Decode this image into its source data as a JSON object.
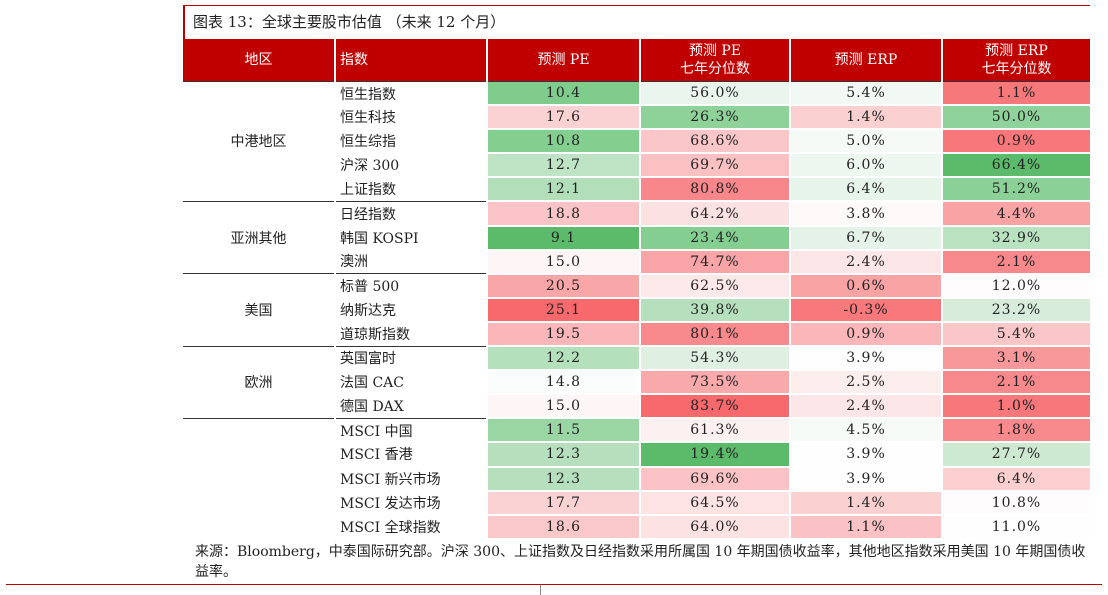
{
  "title": "图表 13：全球主要股市估值 （未来 12 个月）",
  "headers": {
    "region": "地区",
    "index": "指数",
    "pe": "预测 PE",
    "pe_pct": [
      "预测 PE",
      "七年分位数"
    ],
    "erp": "预测 ERP",
    "erp_pct": [
      "预测 ERP",
      "七年分位数"
    ]
  },
  "groups": [
    {
      "region": "中港地区",
      "rows": [
        {
          "index": "恒生指数",
          "pe": "10.4",
          "pe_pct": "56.0%",
          "erp": "5.4%",
          "erp_pct": "1.1%",
          "colors": [
            "#7fcc8c",
            "#e9f5ec",
            "#f2f8f3",
            "#f7787b"
          ]
        },
        {
          "index": "恒生科技",
          "pe": "17.6",
          "pe_pct": "26.3%",
          "erp": "1.4%",
          "erp_pct": "50.0%",
          "colors": [
            "#fbd2d3",
            "#8ed29a",
            "#fbd0d1",
            "#8fd29b"
          ]
        },
        {
          "index": "恒生综指",
          "pe": "10.8",
          "pe_pct": "68.6%",
          "erp": "5.0%",
          "erp_pct": "0.9%",
          "colors": [
            "#84ce90",
            "#fbc6c8",
            "#f5faf6",
            "#f7777a"
          ]
        },
        {
          "index": "沪深 300",
          "pe": "12.7",
          "pe_pct": "69.7%",
          "erp": "6.0%",
          "erp_pct": "66.4%",
          "colors": [
            "#bfe4c5",
            "#fbc0c2",
            "#edf6ef",
            "#5bbb6b"
          ]
        },
        {
          "index": "上证指数",
          "pe": "12.1",
          "pe_pct": "80.8%",
          "erp": "6.4%",
          "erp_pct": "51.2%",
          "colors": [
            "#b2dfb9",
            "#f7878a",
            "#e7f4ea",
            "#8bd197"
          ]
        }
      ]
    },
    {
      "region": "亚洲其他",
      "rows": [
        {
          "index": "日经指数",
          "pe": "18.8",
          "pe_pct": "64.2%",
          "erp": "3.8%",
          "erp_pct": "4.4%",
          "colors": [
            "#fbc4c6",
            "#fce1e2",
            "#fefafa",
            "#f9a3a5"
          ]
        },
        {
          "index": "韩国 KOSPI",
          "pe": "9.1",
          "pe_pct": "23.4%",
          "erp": "6.7%",
          "erp_pct": "32.9%",
          "colors": [
            "#5bbb6b",
            "#85ce91",
            "#e4f2e7",
            "#b9e2c0"
          ]
        },
        {
          "index": "澳洲",
          "pe": "15.0",
          "pe_pct": "74.7%",
          "erp": "2.4%",
          "erp_pct": "2.1%",
          "colors": [
            "#fef6f6",
            "#f9a4a6",
            "#fde6e7",
            "#f7888b"
          ]
        }
      ]
    },
    {
      "region": "美国",
      "rows": [
        {
          "index": "标普 500",
          "pe": "20.5",
          "pe_pct": "62.5%",
          "erp": "0.6%",
          "erp_pct": "12.0%",
          "colors": [
            "#f9a6a8",
            "#fde9ea",
            "#f9a3a5",
            "#fefcfc"
          ]
        },
        {
          "index": "纳斯达克",
          "pe": "25.1",
          "pe_pct": "39.8%",
          "erp": "-0.3%",
          "erp_pct": "23.2%",
          "colors": [
            "#f7696d",
            "#b6e0bd",
            "#f8787b",
            "#d7ecdb"
          ]
        },
        {
          "index": "道琼斯指数",
          "pe": "19.5",
          "pe_pct": "80.1%",
          "erp": "0.9%",
          "erp_pct": "5.4%",
          "colors": [
            "#fab6b8",
            "#f8898c",
            "#fab6b8",
            "#fbc6c8"
          ]
        }
      ]
    },
    {
      "region": "欧洲",
      "rows": [
        {
          "index": "英国富时",
          "pe": "12.2",
          "pe_pct": "54.3%",
          "erp": "3.9%",
          "erp_pct": "3.1%",
          "colors": [
            "#b4e0bb",
            "#dff0e2",
            "#fefefe",
            "#f9989b"
          ]
        },
        {
          "index": "法国 CAC",
          "pe": "14.8",
          "pe_pct": "73.5%",
          "erp": "2.5%",
          "erp_pct": "2.1%",
          "colors": [
            "#fbfdfc",
            "#faa9ab",
            "#fdeeee",
            "#f7888b"
          ]
        },
        {
          "index": "德国 DAX",
          "pe": "15.0",
          "pe_pct": "83.7%",
          "erp": "2.4%",
          "erp_pct": "1.0%",
          "colors": [
            "#fef6f6",
            "#f7696d",
            "#fde6e7",
            "#f7777a"
          ]
        }
      ]
    },
    {
      "region": "",
      "rows": [
        {
          "index": "MSCI 中国",
          "pe": "11.5",
          "pe_pct": "61.3%",
          "erp": "4.5%",
          "erp_pct": "1.8%",
          "colors": [
            "#99d6a4",
            "#fdf0f0",
            "#f7fbf8",
            "#f8898c"
          ]
        },
        {
          "index": "MSCI 香港",
          "pe": "12.3",
          "pe_pct": "19.4%",
          "erp": "3.9%",
          "erp_pct": "27.7%",
          "colors": [
            "#b6e0bd",
            "#5bbb6b",
            "#fefefe",
            "#cde9d2"
          ]
        },
        {
          "index": "MSCI 新兴市场",
          "pe": "12.3",
          "pe_pct": "69.6%",
          "erp": "3.9%",
          "erp_pct": "6.4%",
          "colors": [
            "#b6e0bd",
            "#fbc3c5",
            "#fefefe",
            "#fcd0d1"
          ]
        },
        {
          "index": "MSCI 发达市场",
          "pe": "17.7",
          "pe_pct": "64.5%",
          "erp": "1.4%",
          "erp_pct": "10.8%",
          "colors": [
            "#fbd2d3",
            "#fde3e4",
            "#fbd0d1",
            "#fefcfc"
          ]
        },
        {
          "index": "MSCI 全球指数",
          "pe": "18.6",
          "pe_pct": "64.0%",
          "erp": "1.1%",
          "erp_pct": "11.0%",
          "colors": [
            "#fbc8ca",
            "#fde2e3",
            "#fac2c4",
            "#fefefe"
          ]
        }
      ]
    }
  ],
  "footnote": "来源：Bloomberg，中泰国际研究部。沪深 300、上证指数及日经指数采用所属国 10 年期国债收益率，其他地区指数采用美国 10 年期国债收益率。"
}
